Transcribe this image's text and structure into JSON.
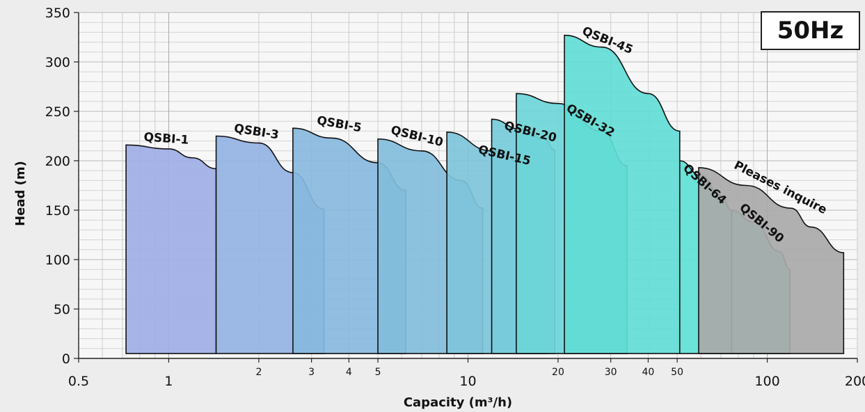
{
  "badge": {
    "frequency": "50Hz"
  },
  "chart_data": {
    "type": "area",
    "title": "",
    "xlabel": "Capacity (m³/h)",
    "ylabel": "Head (m)",
    "x_scale": "log",
    "xlim": [
      0.5,
      200
    ],
    "ylim": [
      0,
      350
    ],
    "grid": true,
    "y_ticks": [
      "0",
      "50",
      "100",
      "150",
      "200",
      "250",
      "300",
      "350"
    ],
    "x_ticks": [
      {
        "v": 0.5,
        "label": "0.5",
        "major": true
      },
      {
        "v": 1,
        "label": "1",
        "major": true
      },
      {
        "v": 2,
        "label": "2",
        "major": false
      },
      {
        "v": 3,
        "label": "3",
        "major": false
      },
      {
        "v": 4,
        "label": "4",
        "major": false
      },
      {
        "v": 5,
        "label": "5",
        "major": false
      },
      {
        "v": 10,
        "label": "10",
        "major": true
      },
      {
        "v": 20,
        "label": "20",
        "major": false
      },
      {
        "v": 30,
        "label": "30",
        "major": false
      },
      {
        "v": 40,
        "label": "40",
        "major": false
      },
      {
        "v": 50,
        "label": "50",
        "major": false
      },
      {
        "v": 100,
        "label": "100",
        "major": true
      },
      {
        "v": 200,
        "label": "200",
        "major": true
      }
    ],
    "series": [
      {
        "name": "QSBI-1",
        "color": "#a0aee6",
        "x": [
          0.72,
          1.0,
          1.2,
          1.44
        ],
        "y": [
          216,
          212,
          203,
          192
        ]
      },
      {
        "name": "QSBI-3",
        "color": "#94b2e3",
        "x": [
          1.44,
          2.0,
          2.6,
          3.3
        ],
        "y": [
          225,
          218,
          188,
          151
        ]
      },
      {
        "name": "QSBI-5",
        "color": "#88b8de",
        "x": [
          2.6,
          3.5,
          5.0,
          6.2
        ],
        "y": [
          233,
          223,
          198,
          170
        ]
      },
      {
        "name": "QSBI-10",
        "color": "#82bddb",
        "x": [
          5.0,
          7.0,
          9.5,
          11.2
        ],
        "y": [
          222,
          210,
          180,
          152
        ]
      },
      {
        "name": "QSBI-15",
        "color": "#7ec4da",
        "x": [
          8.5,
          12.0,
          16.0,
          18.5
        ],
        "y": [
          229,
          210,
          195,
          178
        ]
      },
      {
        "name": "QSBI-20",
        "color": "#76cbd9",
        "x": [
          12.0,
          15.0,
          18.0,
          19.5
        ],
        "y": [
          242,
          232,
          222,
          211
        ]
      },
      {
        "name": "QSBI-32",
        "color": "#6dd5d8",
        "x": [
          14.5,
          20.0,
          28.0,
          34.0
        ],
        "y": [
          268,
          258,
          230,
          195
        ]
      },
      {
        "name": "QSBI-45",
        "color": "#62dcd6",
        "x": [
          21.0,
          28.0,
          40.0,
          51.0
        ],
        "y": [
          327,
          315,
          268,
          230
        ]
      },
      {
        "name": "QSBI-64",
        "color": "#60e1d5",
        "x": [
          51.0,
          60.0,
          70.0,
          76.0
        ],
        "y": [
          200,
          185,
          165,
          150
        ]
      },
      {
        "name": "QSBI-90",
        "color": "#5ee3d4",
        "x": [
          76.0,
          90.0,
          110.0,
          119.0
        ],
        "y": [
          150,
          138,
          108,
          90
        ]
      },
      {
        "name": "Pleases inquire",
        "color": "#a9a9a9",
        "x": [
          59.0,
          85.0,
          120.0,
          140.0,
          180.0
        ],
        "y": [
          193,
          175,
          152,
          133,
          107
        ]
      }
    ]
  }
}
